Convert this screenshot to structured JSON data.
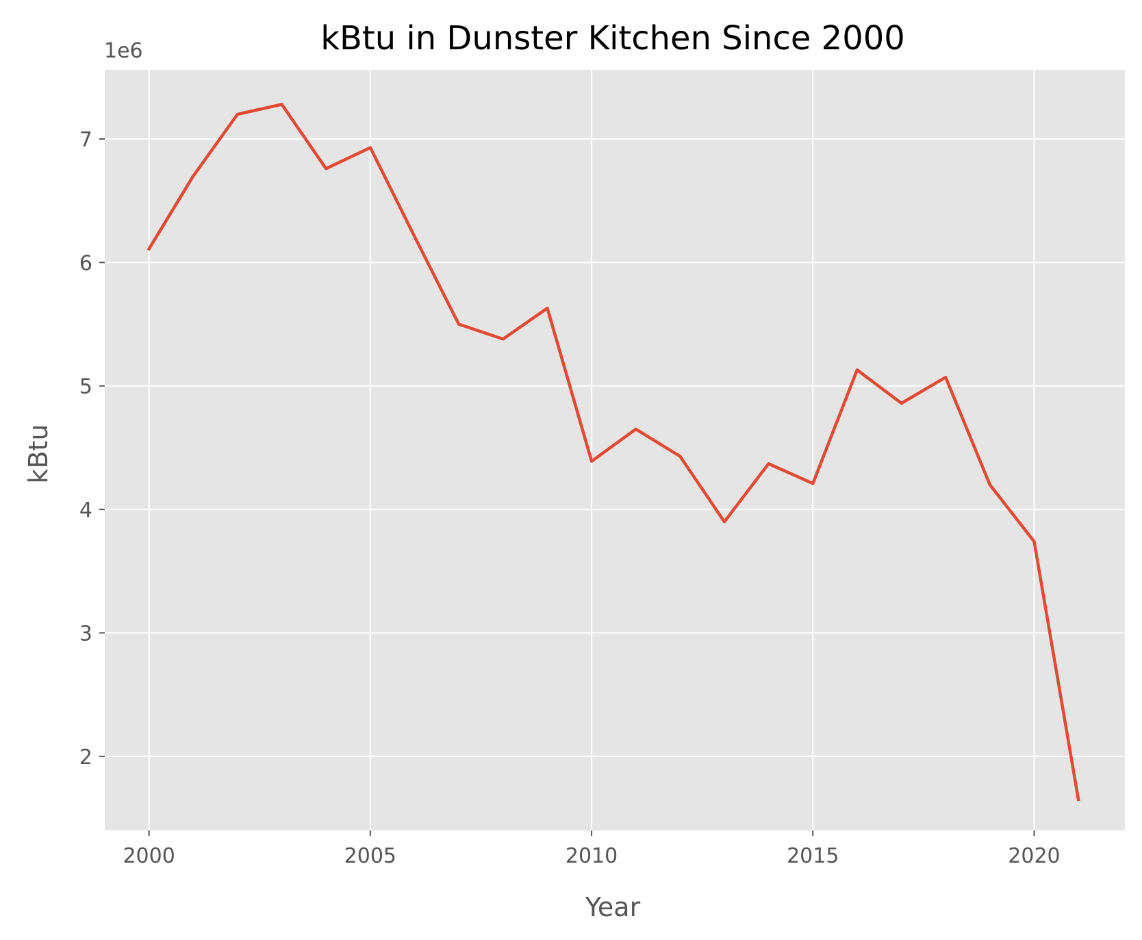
{
  "chart_data": {
    "type": "line",
    "title": "kBtu in Dunster Kitchen Since 2000",
    "xlabel": "Year",
    "ylabel": "kBtu",
    "y_offset_label": "1e6",
    "x": [
      2000,
      2001,
      2002,
      2003,
      2004,
      2005,
      2006,
      2007,
      2008,
      2009,
      2010,
      2011,
      2012,
      2013,
      2014,
      2015,
      2016,
      2017,
      2018,
      2019,
      2020,
      2021
    ],
    "series": [
      {
        "values": [
          6110000,
          6700000,
          7200000,
          7280000,
          6760000,
          6930000,
          6210000,
          5500000,
          5380000,
          5630000,
          4390000,
          4650000,
          4430000,
          3900000,
          4370000,
          4210000,
          5130000,
          4860000,
          5070000,
          4200000,
          3740000,
          1650000
        ],
        "color": "#E24A33"
      }
    ],
    "xlim": [
      1999,
      2022.05
    ],
    "ylim": [
      1400000,
      7560000
    ],
    "x_ticks": [
      2000,
      2005,
      2010,
      2015,
      2020
    ],
    "x_tick_labels": [
      "2000",
      "2005",
      "2010",
      "2015",
      "2020"
    ],
    "y_ticks": [
      2000000,
      3000000,
      4000000,
      5000000,
      6000000,
      7000000
    ],
    "y_tick_labels": [
      "2",
      "3",
      "4",
      "5",
      "6",
      "7"
    ],
    "grid": true,
    "plot_background": "#E5E5E5",
    "grid_color": "#FFFFFF"
  }
}
